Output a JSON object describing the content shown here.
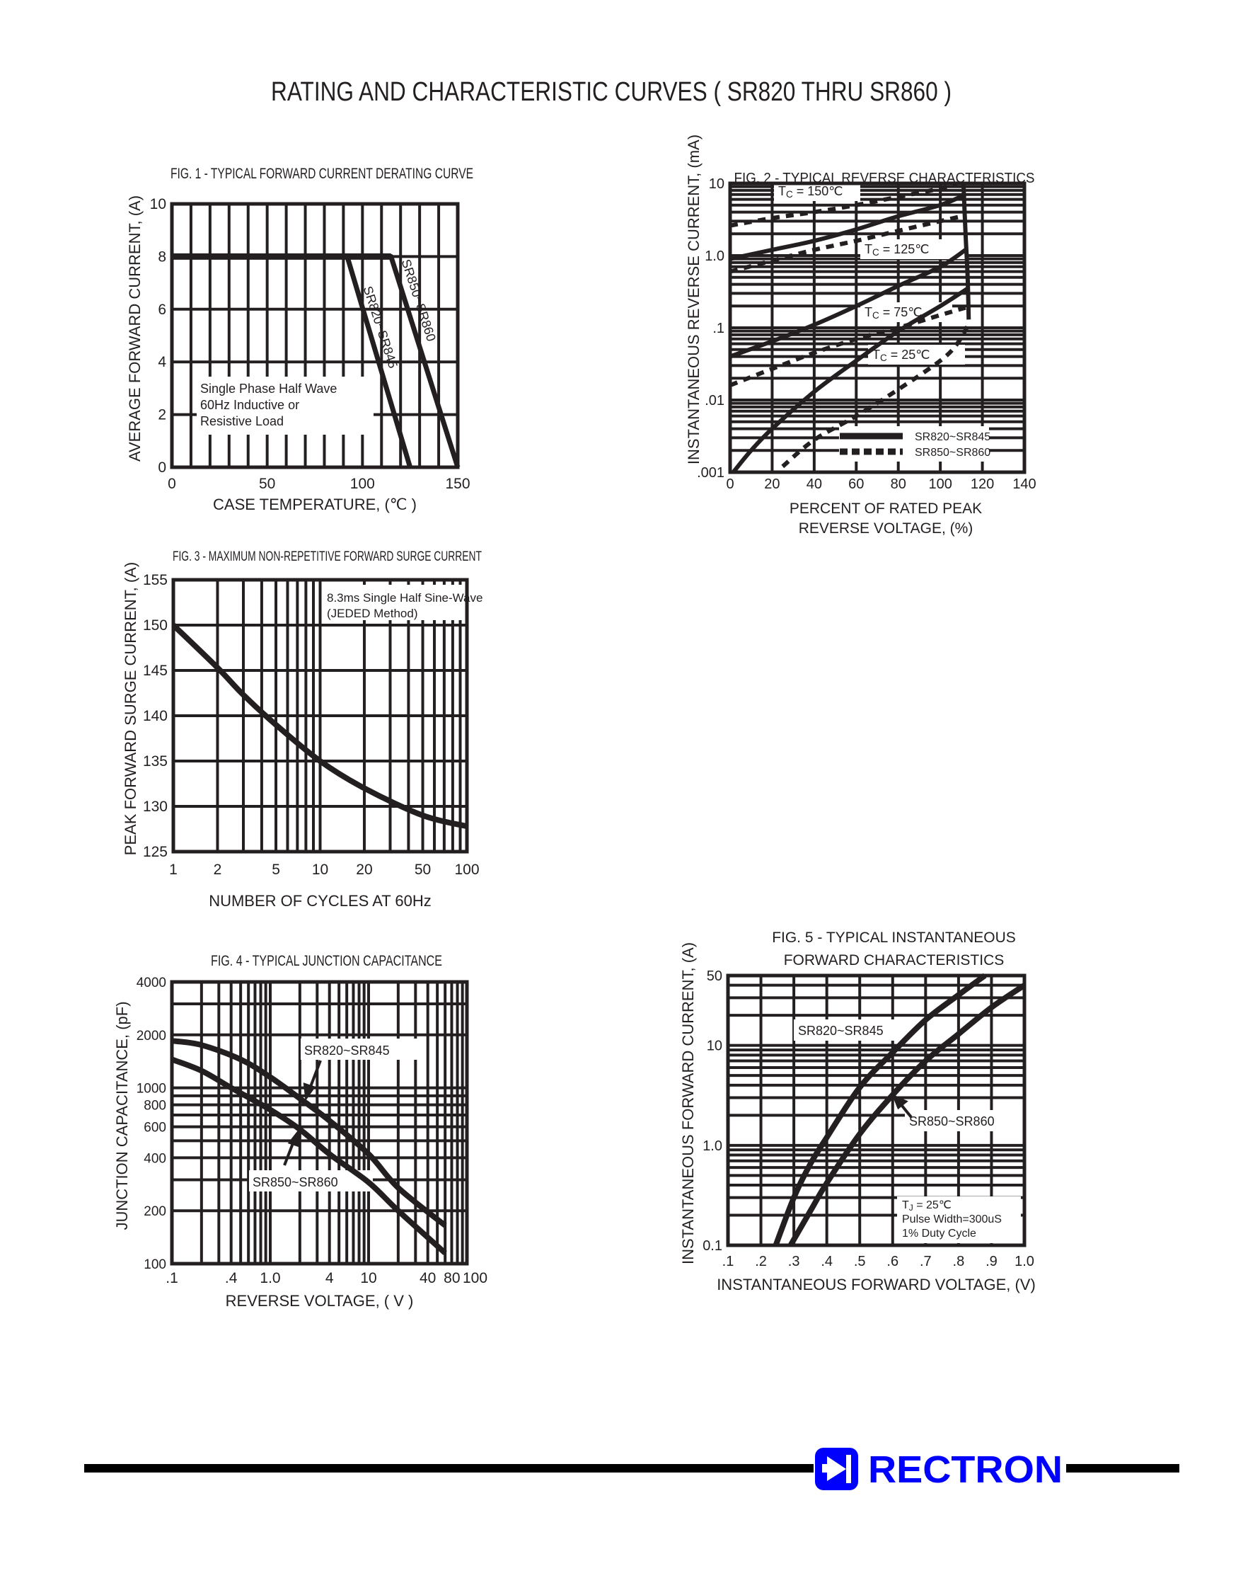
{
  "page": {
    "title": "RATING AND CHARACTERISTIC CURVES ( SR820 THRU SR860 )"
  },
  "brand": {
    "name": "RECTRON",
    "color": "#0000FF",
    "icon": "diode-symbol-icon"
  },
  "colors": {
    "ink": "#231f20",
    "background": "#ffffff"
  },
  "chart_data": [
    {
      "type": "line",
      "title": "FIG. 1 - TYPICAL FORWARD CURRENT DERATING CURVE",
      "xlabel": "CASE TEMPERATURE, (℃ )",
      "ylabel": "AVERAGE FORWARD CURRENT, (A)",
      "xscale": "linear",
      "yscale": "linear",
      "xlim": [
        0,
        150
      ],
      "ylim": [
        0,
        10
      ],
      "xticks": [
        0,
        50,
        100,
        150
      ],
      "xticklabels": [
        "0",
        "50",
        "100",
        "150"
      ],
      "yticks": [
        0,
        2,
        4,
        6,
        8,
        10
      ],
      "yticklabels": [
        "0",
        "2",
        "4",
        "6",
        "8",
        "10"
      ],
      "grid": true,
      "xgrid_step": 10,
      "ygrid_step": 2,
      "annotations": [
        "Single Phase Half Wave",
        "60Hz Inductive or",
        "Resistive Load"
      ],
      "series": [
        {
          "name": "SR820~SR845",
          "style": "solid",
          "points": [
            [
              0,
              8
            ],
            [
              92,
              8
            ],
            [
              125,
              0
            ]
          ]
        },
        {
          "name": "SR850~SR860",
          "style": "solid",
          "points": [
            [
              0,
              8
            ],
            [
              115,
              8
            ],
            [
              150,
              0
            ]
          ]
        }
      ]
    },
    {
      "type": "line",
      "title": "FIG. 2 - TYPICAL REVERSE CHARACTERISTICS",
      "xlabel": [
        "PERCENT OF RATED PEAK",
        "REVERSE VOLTAGE, (%)"
      ],
      "ylabel": "INSTANTANEOUS REVERSE CURRENT, (mA)",
      "xscale": "linear",
      "yscale": "log",
      "xlim": [
        0,
        140
      ],
      "ylim": [
        0.001,
        10
      ],
      "xticks": [
        0,
        20,
        40,
        60,
        80,
        100,
        120,
        140
      ],
      "xticklabels": [
        "0",
        "20",
        "40",
        "60",
        "80",
        "100",
        "120",
        "140"
      ],
      "yticks": [
        0.001,
        0.01,
        0.1,
        1,
        10
      ],
      "yticklabels": [
        ".001",
        ".01",
        ".1",
        "1.0",
        "10"
      ],
      "grid": true,
      "xgrid_step": 20,
      "legend": {
        "placement": "bottom-right",
        "entries": [
          {
            "name": "SR820~SR845",
            "style": "solid"
          },
          {
            "name": "SR850~SR860",
            "style": "dashed"
          }
        ]
      },
      "temperature_labels": [
        {
          "main": "T",
          "sub": "C",
          "rest": " = 150℃"
        },
        {
          "main": "T",
          "sub": "C",
          "rest": " = 125℃"
        },
        {
          "main": "T",
          "sub": "C",
          "rest": " = 75℃"
        },
        {
          "main": "T",
          "sub": "C",
          "rest": " = 25℃"
        }
      ],
      "series": [
        {
          "name": "SR820~SR845",
          "temperature": "150℃",
          "style": "solid",
          "points": [
            [
              0,
              0.9
            ],
            [
              20,
              1.2
            ],
            [
              40,
              1.6
            ],
            [
              60,
              2.3
            ],
            [
              80,
              3.5
            ],
            [
              100,
              5
            ],
            [
              112,
              7
            ]
          ]
        },
        {
          "name": "SR850~SR860",
          "temperature": "150℃",
          "style": "dashed",
          "points": [
            [
              0,
              2.6
            ],
            [
              20,
              3.3
            ],
            [
              40,
              4
            ],
            [
              60,
              5
            ],
            [
              80,
              6.5
            ],
            [
              100,
              8.5
            ],
            [
              108,
              10
            ]
          ]
        },
        {
          "name": "SR850~SR860",
          "temperature": "125℃",
          "style": "dashed",
          "points": [
            [
              0,
              0.6
            ],
            [
              20,
              0.85
            ],
            [
              40,
              1.2
            ],
            [
              60,
              1.6
            ],
            [
              80,
              2.2
            ],
            [
              100,
              3
            ],
            [
              112,
              3.6
            ]
          ]
        },
        {
          "name": "SR820~SR845",
          "temperature": "75℃",
          "style": "solid",
          "points": [
            [
              0,
              0.04
            ],
            [
              20,
              0.065
            ],
            [
              40,
              0.11
            ],
            [
              60,
              0.2
            ],
            [
              80,
              0.38
            ],
            [
              100,
              0.7
            ],
            [
              112,
              1.2
            ]
          ]
        },
        {
          "name": "SR850~SR860",
          "temperature": "75℃",
          "style": "dashed",
          "points": [
            [
              0,
              0.016
            ],
            [
              20,
              0.027
            ],
            [
              40,
              0.045
            ],
            [
              60,
              0.07
            ],
            [
              80,
              0.1
            ],
            [
              100,
              0.15
            ],
            [
              112,
              0.19
            ]
          ]
        },
        {
          "name": "SR820~SR845",
          "temperature": "25℃",
          "style": "solid",
          "points": [
            [
              1.5,
              0.001
            ],
            [
              10,
              0.002
            ],
            [
              20,
              0.004
            ],
            [
              40,
              0.013
            ],
            [
              60,
              0.035
            ],
            [
              80,
              0.09
            ],
            [
              100,
              0.2
            ],
            [
              113,
              0.35
            ]
          ]
        },
        {
          "name": "SR850~SR860",
          "temperature": "25℃",
          "style": "dashed",
          "points": [
            [
              25,
              0.0012
            ],
            [
              40,
              0.0028
            ],
            [
              60,
              0.006
            ],
            [
              80,
              0.014
            ],
            [
              100,
              0.035
            ],
            [
              108,
              0.06
            ],
            [
              114,
              0.12
            ]
          ]
        },
        {
          "name": "",
          "style": "solid",
          "points": [
            [
              111,
              9.8
            ],
            [
              112,
              2
            ],
            [
              113,
              0.5
            ],
            [
              113.5,
              0.13
            ]
          ]
        }
      ]
    },
    {
      "type": "line",
      "title": "FIG. 3 - MAXIMUM NON-REPETITIVE FORWARD SURGE CURRENT",
      "xlabel": "NUMBER OF CYCLES AT 60Hz",
      "ylabel": "PEAK FORWARD SURGE CURRENT, (A)",
      "xscale": "log",
      "yscale": "linear",
      "xlim": [
        1,
        100
      ],
      "ylim": [
        125,
        155
      ],
      "xticks": [
        1,
        2,
        5,
        10,
        20,
        50,
        100
      ],
      "xticklabels": [
        "1",
        "2",
        "5",
        "10",
        "20",
        "50",
        "100"
      ],
      "yticks": [
        125,
        130,
        135,
        140,
        145,
        150,
        155
      ],
      "yticklabels": [
        "125",
        "130",
        "135",
        "140",
        "145",
        "150",
        "155"
      ],
      "grid": true,
      "ygrid_step": 5,
      "annotations": [
        "8.3ms Single Half Sine-Wave",
        "(JEDED Method)"
      ],
      "series": [
        {
          "name": "",
          "style": "solid",
          "points": [
            [
              1,
              150
            ],
            [
              2,
              145.3
            ],
            [
              3,
              142.3
            ],
            [
              5,
              139
            ],
            [
              10,
              135
            ],
            [
              20,
              132
            ],
            [
              50,
              129
            ],
            [
              100,
              127.8
            ]
          ]
        }
      ]
    },
    {
      "type": "line",
      "title": "FIG. 4 - TYPICAL JUNCTION CAPACITANCE",
      "xlabel": "REVERSE VOLTAGE, ( V )",
      "ylabel": "JUNCTION CAPACITANCE, (pF)",
      "xscale": "log",
      "yscale": "log",
      "xlim": [
        0.1,
        100
      ],
      "ylim": [
        100,
        4000
      ],
      "xticks": [
        0.1,
        0.4,
        1,
        4,
        10,
        40,
        80,
        100
      ],
      "xticklabels": [
        ".1",
        ".4",
        "1.0",
        "4",
        "10",
        "40",
        "80",
        "100"
      ],
      "yticks": [
        100,
        200,
        400,
        600,
        800,
        1000,
        2000,
        4000
      ],
      "yticklabels": [
        "100",
        "200",
        "400",
        "600",
        "800",
        "1000",
        "2000",
        "4000"
      ],
      "grid": true,
      "series": [
        {
          "name": "SR820~SR845",
          "style": "solid",
          "points": [
            [
              0.1,
              1850
            ],
            [
              0.2,
              1750
            ],
            [
              0.5,
              1450
            ],
            [
              1,
              1150
            ],
            [
              2,
              870
            ],
            [
              4,
              650
            ],
            [
              10,
              420
            ],
            [
              20,
              270
            ],
            [
              60,
              165
            ]
          ]
        },
        {
          "name": "SR850~SR860",
          "style": "solid",
          "points": [
            [
              0.1,
              1450
            ],
            [
              0.2,
              1250
            ],
            [
              0.4,
              1000
            ],
            [
              1,
              750
            ],
            [
              2,
              580
            ],
            [
              4,
              420
            ],
            [
              10,
              290
            ],
            [
              20,
              200
            ],
            [
              60,
              115
            ]
          ]
        }
      ]
    },
    {
      "type": "line",
      "title": [
        "FIG. 5 - TYPICAL INSTANTANEOUS",
        "FORWARD CHARACTERISTICS"
      ],
      "xlabel": "INSTANTANEOUS FORWARD VOLTAGE, (V)",
      "ylabel": "INSTANTANEOUS FORWARD CURRENT, (A)",
      "xscale": "linear",
      "yscale": "log",
      "xlim": [
        0.1,
        1.0
      ],
      "ylim": [
        0.1,
        50
      ],
      "xticks": [
        0.1,
        0.2,
        0.3,
        0.4,
        0.5,
        0.6,
        0.7,
        0.8,
        0.9,
        1.0
      ],
      "xticklabels": [
        ".1",
        ".2",
        ".3",
        ".4",
        ".5",
        ".6",
        ".7",
        ".8",
        ".9",
        "1.0"
      ],
      "yticks": [
        0.1,
        1,
        10,
        50
      ],
      "yticklabels": [
        "0.1",
        "1.0",
        "10",
        "50"
      ],
      "grid": true,
      "xgrid_step": 0.1,
      "annotations": [
        {
          "main": "T",
          "sub": "J",
          "rest": " = 25℃"
        },
        "Pulse Width=300uS",
        "1% Duty Cycle"
      ],
      "series": [
        {
          "name": "SR820~SR845",
          "style": "solid",
          "points": [
            [
              0.245,
              0.1
            ],
            [
              0.3,
              0.3
            ],
            [
              0.35,
              0.65
            ],
            [
              0.4,
              1.2
            ],
            [
              0.5,
              3.8
            ],
            [
              0.6,
              8.5
            ],
            [
              0.7,
              18
            ],
            [
              0.8,
              32
            ],
            [
              0.88,
              50
            ]
          ]
        },
        {
          "name": "SR850~SR860",
          "style": "solid",
          "points": [
            [
              0.29,
              0.1
            ],
            [
              0.35,
              0.22
            ],
            [
              0.4,
              0.42
            ],
            [
              0.5,
              1.3
            ],
            [
              0.6,
              3.2
            ],
            [
              0.7,
              7
            ],
            [
              0.8,
              13
            ],
            [
              0.9,
              24
            ],
            [
              1.0,
              40
            ]
          ]
        }
      ]
    }
  ]
}
